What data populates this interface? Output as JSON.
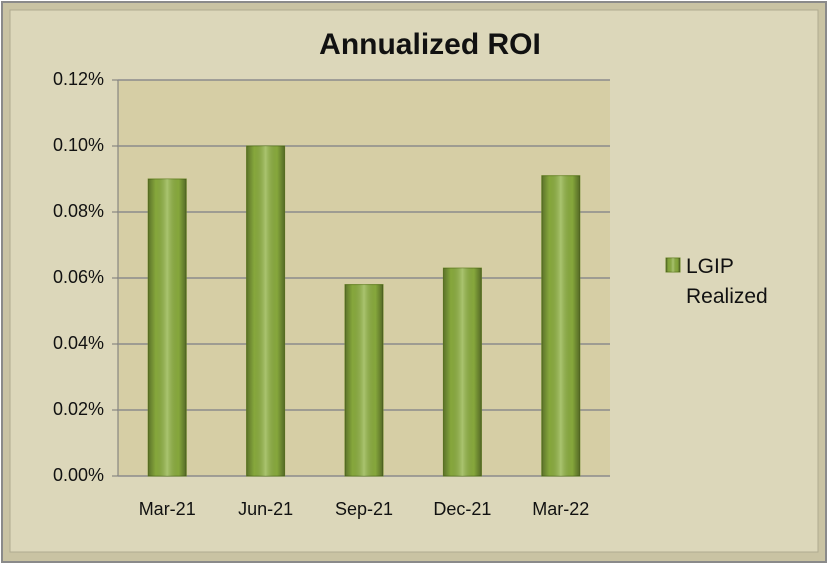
{
  "chart_data": {
    "type": "bar",
    "title": "Annualized ROI",
    "categories": [
      "Mar-21",
      "Jun-21",
      "Sep-21",
      "Dec-21",
      "Mar-22"
    ],
    "series": [
      {
        "name": "LGIP Realized",
        "color": "#8db03f",
        "values": [
          0.09,
          0.1,
          0.058,
          0.063,
          0.091
        ]
      }
    ],
    "ylim": [
      0,
      0.12
    ],
    "yticks": [
      {
        "value": 0,
        "label": "0.00%"
      },
      {
        "value": 0.02,
        "label": "0.02%"
      },
      {
        "value": 0.04,
        "label": "0.04%"
      },
      {
        "value": 0.06,
        "label": "0.06%"
      },
      {
        "value": 0.08,
        "label": "0.08%"
      },
      {
        "value": 0.1,
        "label": "0.10%"
      },
      {
        "value": 0.12,
        "label": "0.12%"
      }
    ],
    "grid": true,
    "legend": "right"
  }
}
